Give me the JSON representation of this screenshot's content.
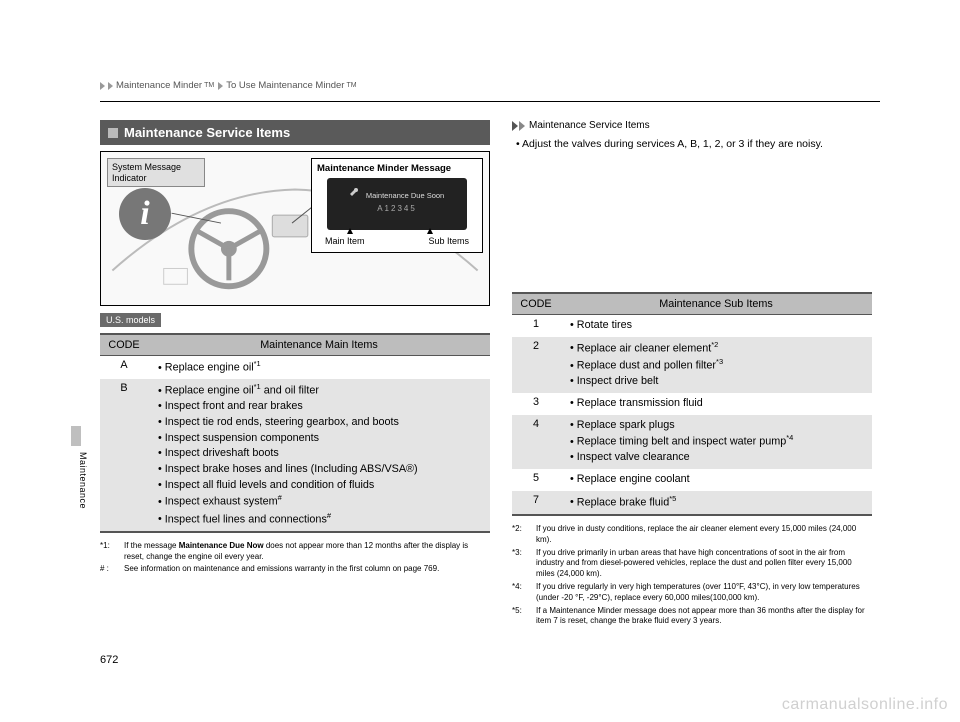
{
  "breadcrumb": {
    "part1": "Maintenance Minder",
    "tm": "TM",
    "part2": "To Use Maintenance Minder",
    "tm2": "TM"
  },
  "section_title": "Maintenance Service Items",
  "diagram": {
    "sys_msg_label": "System Message Indicator",
    "mm_msg_label": "Maintenance Minder Message",
    "screen_line1": "Maintenance Due Soon",
    "screen_line2": "A12345",
    "main_item_label": "Main Item",
    "sub_items_label": "Sub Items"
  },
  "model_tag": "U.S. models",
  "info_box": {
    "heading": "Maintenance Service Items",
    "bullet": "Adjust the valves during services A, B, 1, 2, or 3 if they are noisy."
  },
  "main_table": {
    "code_header": "CODE",
    "items_header": "Maintenance Main Items",
    "rows": [
      {
        "code": "A",
        "shade": false,
        "items": [
          {
            "text": "Replace engine oil",
            "sup": "*1"
          }
        ]
      },
      {
        "code": "B",
        "shade": true,
        "items": [
          {
            "text": "Replace engine oil",
            "sup": "*1",
            "tail": " and oil filter"
          },
          {
            "text": "Inspect front and rear brakes"
          },
          {
            "text": "Inspect tie rod ends, steering gearbox, and boots"
          },
          {
            "text": "Inspect suspension components"
          },
          {
            "text": "Inspect driveshaft boots"
          },
          {
            "text": "Inspect brake hoses and lines (Including ABS/VSA®)"
          },
          {
            "text": "Inspect all fluid levels and condition of fluids"
          },
          {
            "text": "Inspect exhaust system",
            "sup": "#"
          },
          {
            "text": "Inspect fuel lines and connections",
            "sup": "#"
          }
        ]
      }
    ]
  },
  "sub_table": {
    "code_header": "CODE",
    "items_header": "Maintenance Sub Items",
    "rows": [
      {
        "code": "1",
        "shade": false,
        "items": [
          {
            "text": "Rotate tires"
          }
        ]
      },
      {
        "code": "2",
        "shade": true,
        "items": [
          {
            "text": "Replace air cleaner element",
            "sup": "*2"
          },
          {
            "text": "Replace dust and pollen filter",
            "sup": "*3"
          },
          {
            "text": "Inspect drive belt"
          }
        ]
      },
      {
        "code": "3",
        "shade": false,
        "items": [
          {
            "text": "Replace transmission fluid"
          }
        ]
      },
      {
        "code": "4",
        "shade": true,
        "items": [
          {
            "text": "Replace spark plugs"
          },
          {
            "text": "Replace timing belt and inspect water pump",
            "sup": "*4"
          },
          {
            "text": "Inspect valve clearance"
          }
        ]
      },
      {
        "code": "5",
        "shade": false,
        "items": [
          {
            "text": "Replace engine coolant"
          }
        ]
      },
      {
        "code": "7",
        "shade": true,
        "items": [
          {
            "text": "Replace brake fluid",
            "sup": "*5"
          }
        ]
      }
    ]
  },
  "footnotes_left": [
    {
      "lbl": "*1:",
      "txt_pre": "If the message ",
      "bold": "Maintenance Due Now",
      "txt_post": " does not appear more than 12 months after the display is reset, change the engine oil every year."
    },
    {
      "lbl": "# :",
      "txt": "See information on maintenance and emissions warranty in the first column on page 769."
    }
  ],
  "footnotes_right": [
    {
      "lbl": "*2:",
      "txt": "If you drive in dusty conditions, replace the air cleaner element every 15,000 miles (24,000 km)."
    },
    {
      "lbl": "*3:",
      "txt": "If you drive primarily in urban areas that have high concentrations of soot in the air from industry and from diesel-powered vehicles, replace the dust and pollen filter every 15,000 miles (24,000 km)."
    },
    {
      "lbl": "*4:",
      "txt": "If you drive regularly in very high temperatures (over 110°F, 43°C), in very low temperatures (under -20 °F, -29°C), replace every 60,000 miles(100,000 km)."
    },
    {
      "lbl": "*5:",
      "txt": "If a Maintenance Minder message does not appear more than 36 months after the display for item 7 is reset, change the brake fluid every 3 years."
    }
  ],
  "side_label": "Maintenance",
  "page_number": "672",
  "watermark": "carmanualsonline.info",
  "colors": {
    "header_bg": "#5a5a5a",
    "tag_bg": "#6a6a6a",
    "th_bg": "#bdbdbd",
    "shade_bg": "#e4e4e4",
    "side_tab": "#bfbfbf",
    "watermark": "#d0d0d0"
  }
}
